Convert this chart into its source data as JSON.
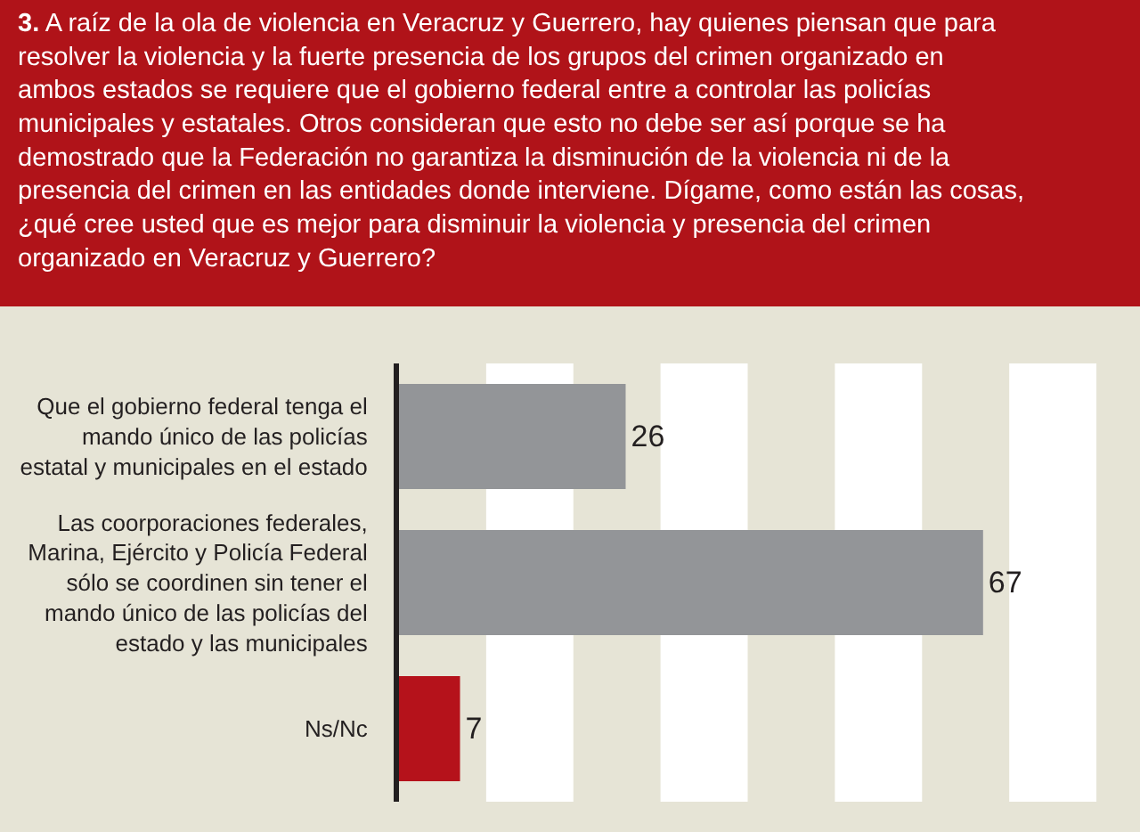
{
  "chart_data": {
    "type": "bar",
    "orientation": "horizontal",
    "title": "3. A raíz de la ola de violencia en Veracruz y Guerrero, hay quienes piensan que para resolver la violencia y la fuerte presencia de los grupos del crimen organizado en ambos estados se requiere que el gobierno federal entre a controlar las policías municipales y estatales. Otros consideran que esto no debe ser así porque se ha demostrado que la Federación no garantiza la disminución de la violencia ni de la presencia del crimen en las entidades donde interviene. Dígame, como están las cosas, ¿qué cree usted que es mejor para disminuir la violencia y presencia del crimen organizado en Veracruz y Guerrero?",
    "categories": [
      "Que el gobierno federal tenga el mando único de las policías estatal y municipales en el estado",
      "Las coorporaciones federales, Marina, Ejército y Policía Federal sólo se coordinen sin tener el mando único de las policías del estado y las municipales",
      "Ns/Nc"
    ],
    "values": [
      26,
      67,
      7
    ],
    "colors": [
      "#939598",
      "#939598",
      "#b5121b"
    ],
    "data_labels": true,
    "xlim": [
      0,
      85
    ],
    "tick_labels": "y",
    "bands": [
      {
        "axis": "x",
        "from": 10,
        "to": 20,
        "color": "#ffffff"
      },
      {
        "axis": "x",
        "from": 30,
        "to": 40,
        "color": "#ffffff"
      },
      {
        "axis": "x",
        "from": 50,
        "to": 60,
        "color": "#ffffff"
      },
      {
        "axis": "x",
        "from": 70,
        "to": 80,
        "color": "#ffffff"
      }
    ]
  }
}
